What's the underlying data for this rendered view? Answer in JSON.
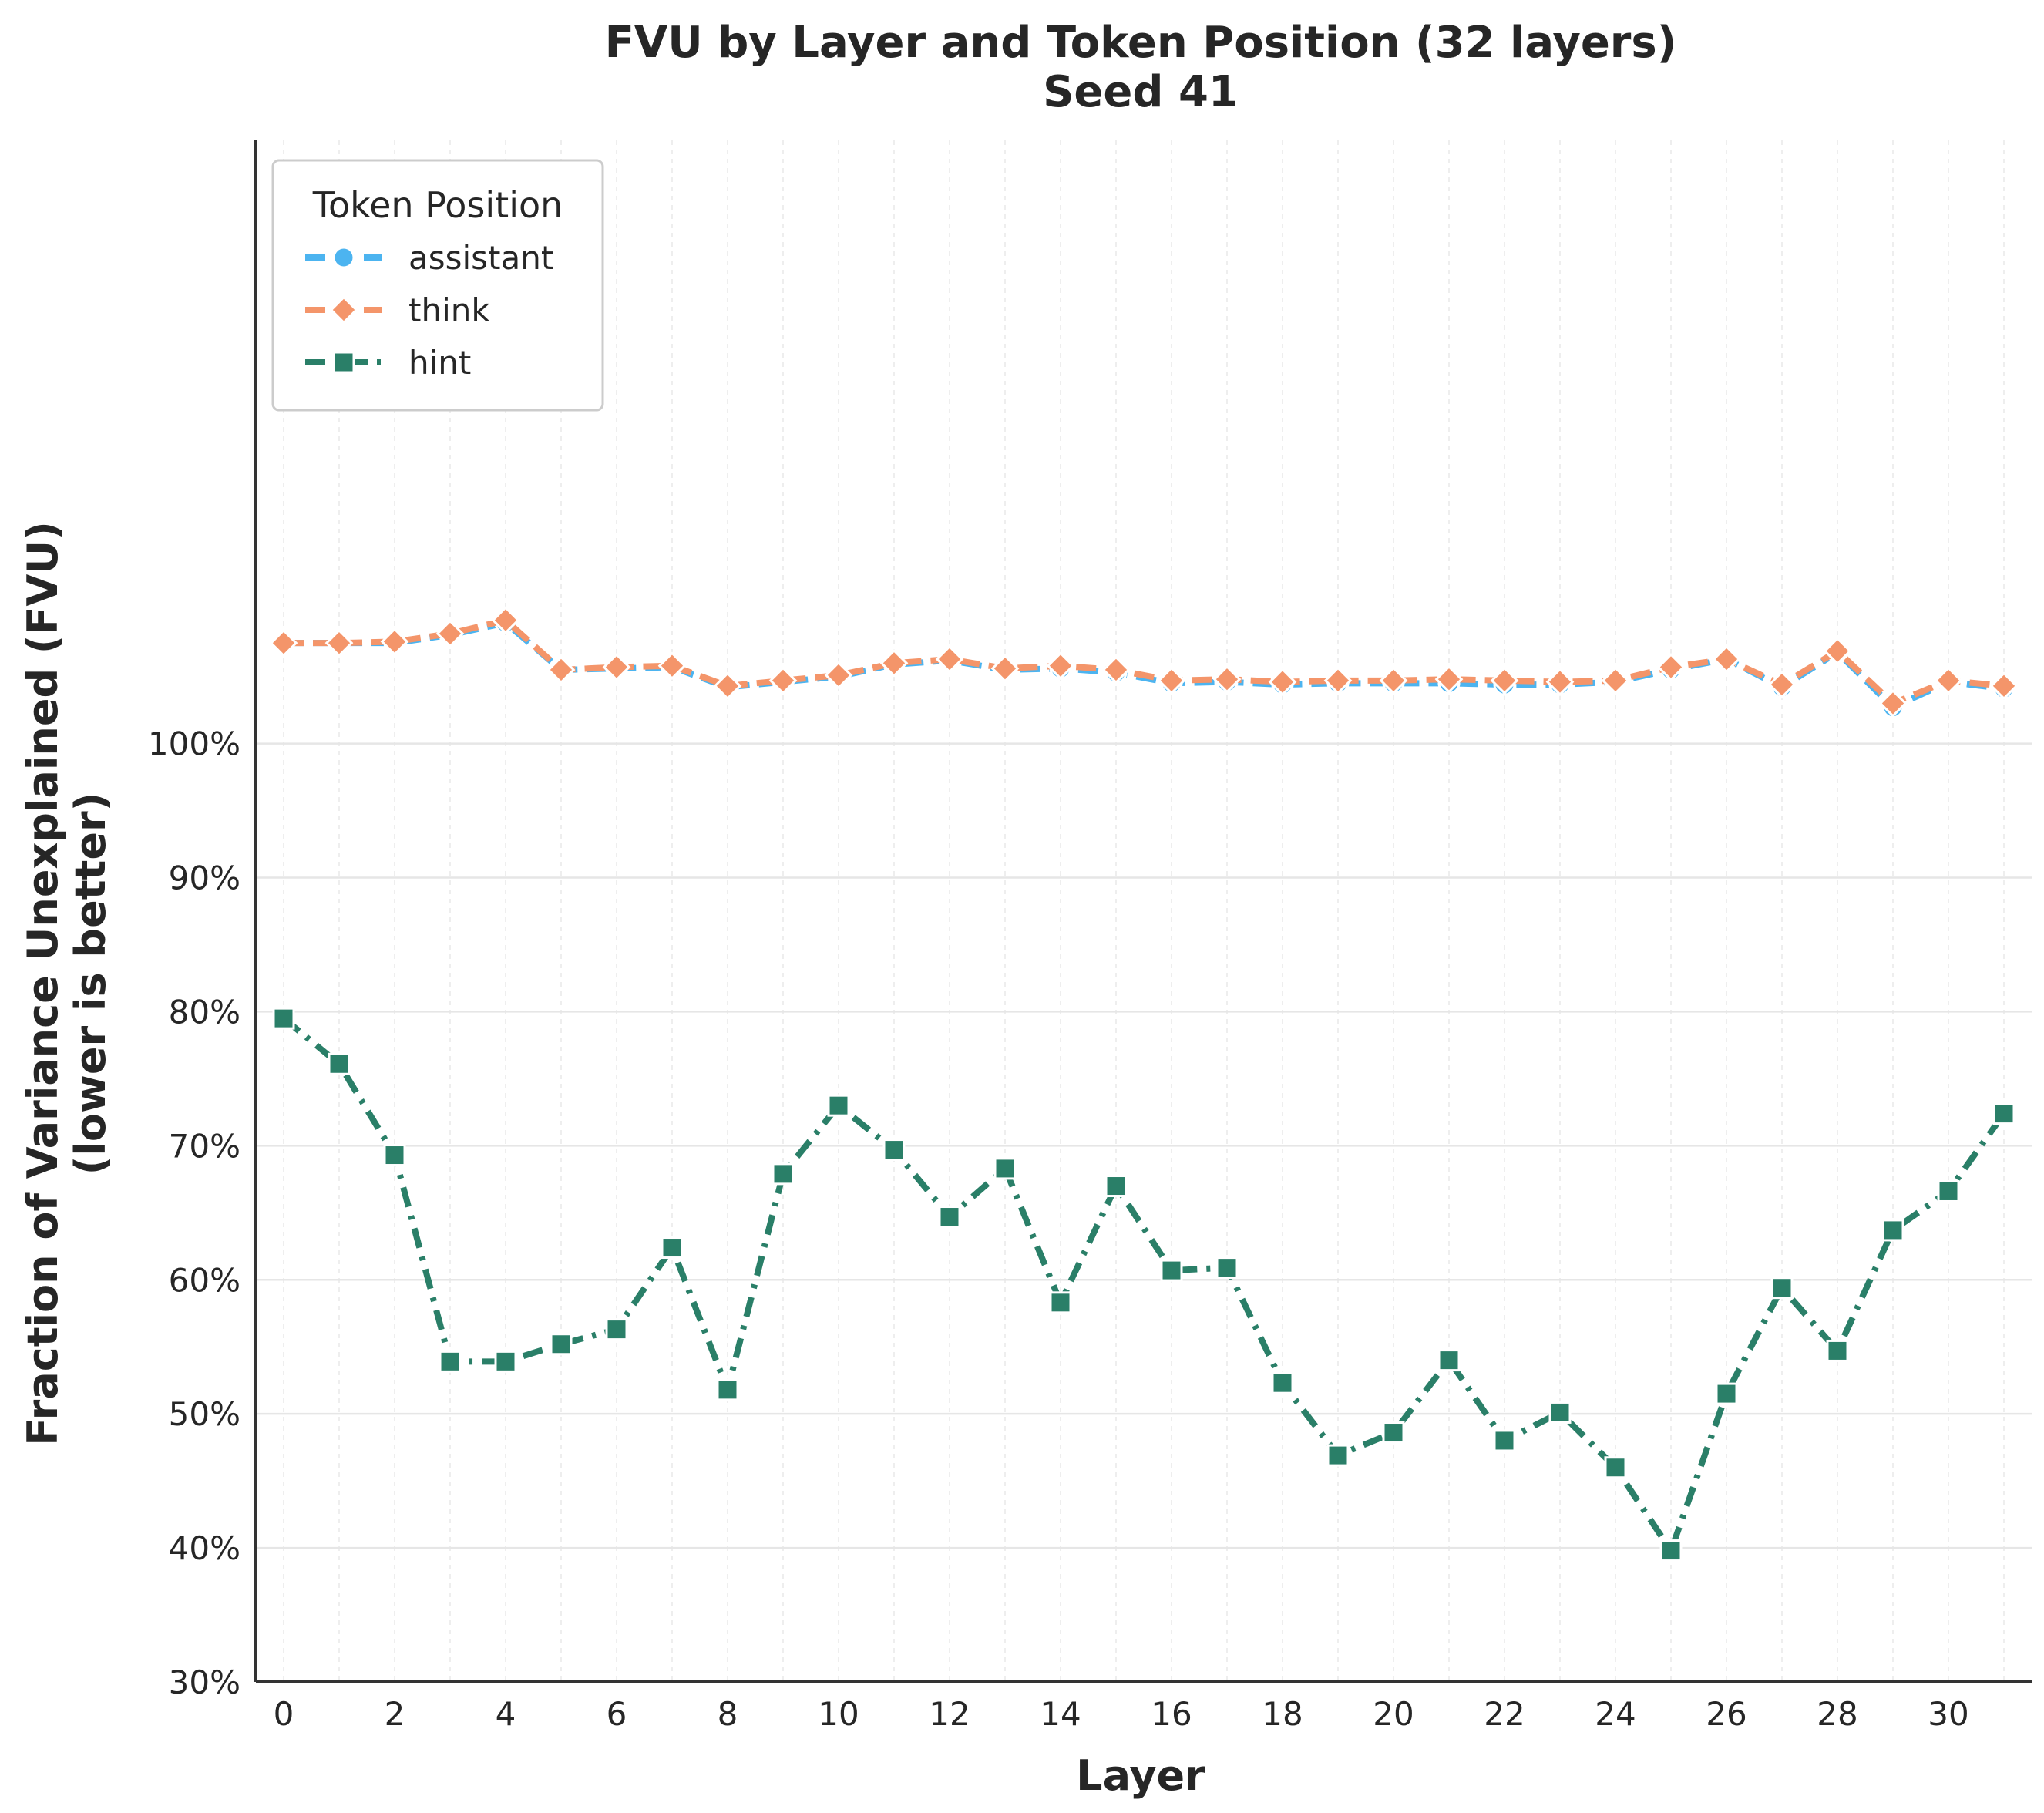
{
  "chart_data": {
    "type": "line",
    "title": "FVU by Layer and Token Position (32 layers)",
    "subtitle": "Seed 41",
    "xlabel": "Layer",
    "ylabel": "Fraction of Variance Unexplained (FVU)",
    "ylabel_line2": "(lower is better)",
    "xlim": [
      -0.5,
      31.5
    ],
    "ylim": [
      0.3,
      1.45
    ],
    "x_ticks": [
      0,
      2,
      4,
      6,
      8,
      10,
      12,
      14,
      16,
      18,
      20,
      22,
      24,
      26,
      28,
      30
    ],
    "y_ticks": [
      0.3,
      0.4,
      0.5,
      0.6,
      0.7,
      0.8,
      0.9,
      1.0
    ],
    "y_tick_labels": [
      "30%",
      "40%",
      "50%",
      "60%",
      "70%",
      "80%",
      "90%",
      "100%"
    ],
    "grid": true,
    "legend": {
      "title": "Token Position",
      "position": "top-left"
    },
    "x": [
      0,
      1,
      2,
      3,
      4,
      5,
      6,
      7,
      8,
      9,
      10,
      11,
      12,
      13,
      14,
      15,
      16,
      17,
      18,
      19,
      20,
      21,
      22,
      23,
      24,
      25,
      26,
      27,
      28,
      29,
      30,
      31
    ],
    "series": [
      {
        "name": "assistant",
        "color": "#4cb4f0",
        "marker": "circle",
        "dash": "dashed",
        "values": [
          1.075,
          1.075,
          1.075,
          1.081,
          1.09,
          1.055,
          1.056,
          1.057,
          1.042,
          1.046,
          1.05,
          1.059,
          1.062,
          1.055,
          1.056,
          1.053,
          1.045,
          1.046,
          1.044,
          1.045,
          1.045,
          1.045,
          1.044,
          1.044,
          1.046,
          1.055,
          1.063,
          1.042,
          1.068,
          1.027,
          1.046,
          1.041
        ]
      },
      {
        "name": "think",
        "color": "#f4956a",
        "marker": "diamond",
        "dash": "dashed",
        "values": [
          1.075,
          1.075,
          1.076,
          1.082,
          1.092,
          1.055,
          1.057,
          1.058,
          1.043,
          1.047,
          1.051,
          1.06,
          1.063,
          1.056,
          1.058,
          1.055,
          1.047,
          1.048,
          1.046,
          1.047,
          1.047,
          1.048,
          1.047,
          1.046,
          1.047,
          1.057,
          1.063,
          1.044,
          1.069,
          1.03,
          1.047,
          1.043
        ]
      },
      {
        "name": "hint",
        "color": "#2a7f68",
        "marker": "square",
        "dash": "dashdot",
        "values": [
          0.795,
          0.761,
          0.693,
          0.539,
          0.539,
          0.552,
          0.563,
          0.624,
          0.518,
          0.679,
          0.73,
          0.697,
          0.647,
          0.683,
          0.583,
          0.67,
          0.607,
          0.609,
          0.523,
          0.469,
          0.486,
          0.54,
          0.48,
          0.501,
          0.46,
          0.398,
          0.515,
          0.594,
          0.547,
          0.637,
          0.666,
          0.724
        ]
      }
    ]
  }
}
